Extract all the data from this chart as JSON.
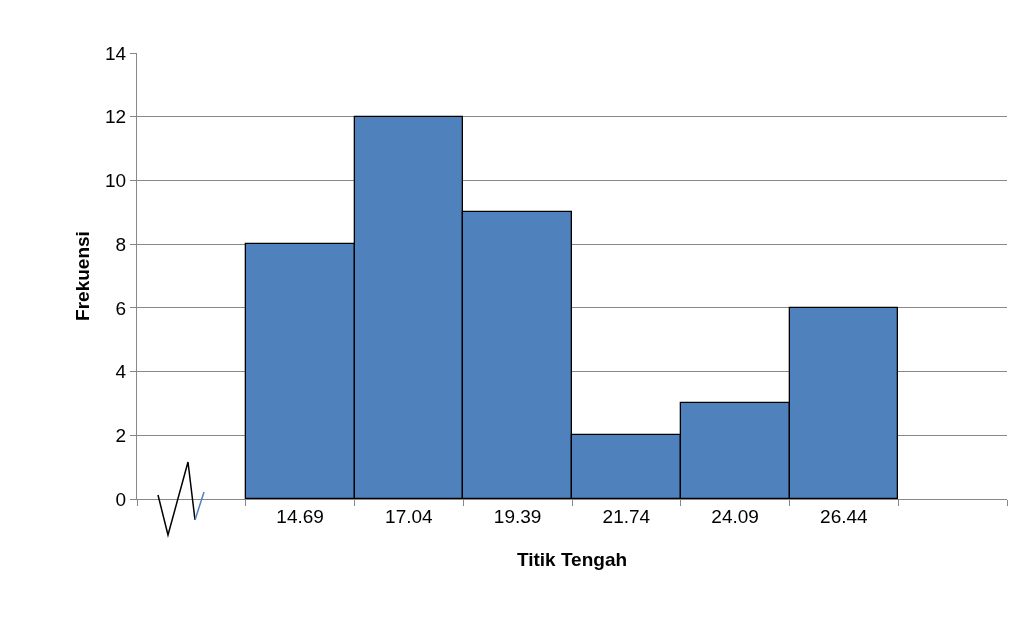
{
  "chart_data": {
    "type": "bar",
    "xlabel": "Titik Tengah",
    "ylabel": "Frekuensi",
    "categories": [
      null,
      "14.69",
      "17.04",
      "19.39",
      "21.74",
      "24.09",
      "26.44",
      null
    ],
    "values": [
      null,
      8,
      12,
      9,
      2,
      3,
      6,
      null
    ],
    "color": "#4f81bd",
    "ylim": [
      0,
      14
    ],
    "yticks": [
      0,
      2,
      4,
      6,
      8,
      10,
      12,
      14
    ],
    "grid": "y",
    "legend": false
  }
}
